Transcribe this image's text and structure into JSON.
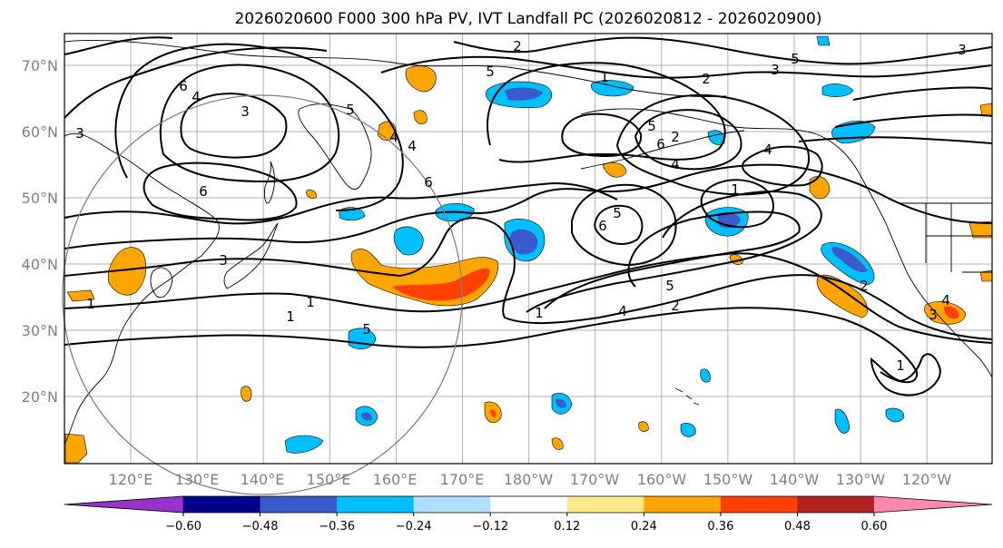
{
  "title": "2026020600 F000 300 hPa PV, IVT Landfall PC (2026020812 - 2026020900)",
  "map": {
    "lat_labels": [
      "70°N",
      "60°N",
      "50°N",
      "40°N",
      "30°N",
      "20°N"
    ],
    "lon_labels": [
      "120°E",
      "130°E",
      "140°E",
      "150°E",
      "160°E",
      "170°E",
      "180°W",
      "170°W",
      "160°W",
      "150°W",
      "140°W",
      "130°W",
      "120°W"
    ],
    "contour_labels": [
      "1",
      "2",
      "3",
      "4",
      "5",
      "6",
      "4",
      "3",
      "6",
      "5",
      "4",
      "3",
      "6",
      "5",
      "1",
      "4",
      "2",
      "1",
      "5",
      "4",
      "2",
      "5",
      "6",
      "4",
      "1",
      "3",
      "1",
      "2",
      "5",
      "6",
      "3",
      "2",
      "4",
      "1",
      "5",
      "3",
      "1"
    ]
  },
  "colorbar": {
    "tick_labels": [
      "−0.60",
      "−0.48",
      "−0.36",
      "−0.24",
      "−0.12",
      "0.12",
      "0.24",
      "0.36",
      "0.48",
      "0.60"
    ],
    "colors": [
      "#9932cc",
      "#00008b",
      "#3a5bcc",
      "#00bfff",
      "#afdfff",
      "#ffffff",
      "#ffe88a",
      "#ffa500",
      "#ff4000",
      "#b22222",
      "#ff88b0"
    ]
  }
}
